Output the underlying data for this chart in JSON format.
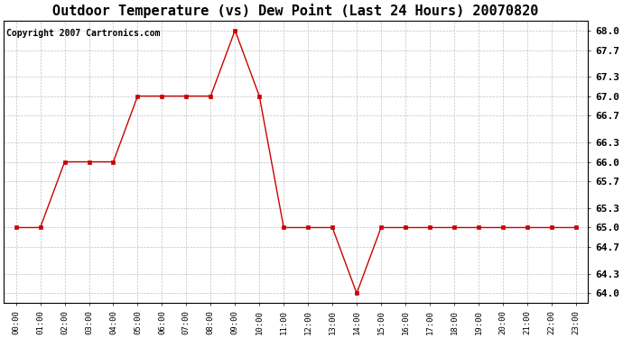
{
  "title": "Outdoor Temperature (vs) Dew Point (Last 24 Hours) 20070820",
  "copyright": "Copyright 2007 Cartronics.com",
  "x_labels": [
    "00:00",
    "01:00",
    "02:00",
    "03:00",
    "04:00",
    "05:00",
    "06:00",
    "07:00",
    "08:00",
    "09:00",
    "10:00",
    "11:00",
    "12:00",
    "13:00",
    "14:00",
    "15:00",
    "16:00",
    "17:00",
    "18:00",
    "19:00",
    "20:00",
    "21:00",
    "22:00",
    "23:00"
  ],
  "y_values": [
    65.0,
    65.0,
    66.0,
    66.0,
    66.0,
    67.0,
    67.0,
    67.0,
    67.0,
    68.0,
    67.0,
    65.0,
    65.0,
    65.0,
    64.0,
    65.0,
    65.0,
    65.0,
    65.0,
    65.0,
    65.0,
    65.0,
    65.0,
    65.0
  ],
  "line_color": "#cc0000",
  "marker": "s",
  "marker_size": 2.5,
  "marker_color": "#cc0000",
  "ylim": [
    63.85,
    68.15
  ],
  "yticks": [
    68.0,
    67.7,
    67.3,
    67.0,
    66.7,
    66.3,
    66.0,
    65.7,
    65.3,
    65.0,
    64.7,
    64.3,
    64.0
  ],
  "ytick_labels": [
    "68.0",
    "67.7",
    "67.3",
    "67.0",
    "66.7",
    "66.3",
    "66.0",
    "65.7",
    "65.3",
    "65.0",
    "64.7",
    "64.3",
    "64.0"
  ],
  "background_color": "#ffffff",
  "plot_bg_color": "#ffffff",
  "grid_color": "#bbbbbb",
  "title_fontsize": 11,
  "copyright_fontsize": 7,
  "xtick_fontsize": 6.5,
  "ytick_fontsize": 8
}
